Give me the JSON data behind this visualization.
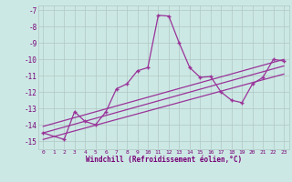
{
  "xlabel": "Windchill (Refroidissement éolien,°C)",
  "background_color": "#cce8e4",
  "grid_color": "#b0c8c4",
  "line_color": "#993399",
  "xlim": [
    -0.5,
    23.5
  ],
  "ylim": [
    -15.5,
    -6.7
  ],
  "xticks": [
    0,
    1,
    2,
    3,
    4,
    5,
    6,
    7,
    8,
    9,
    10,
    11,
    12,
    13,
    14,
    15,
    16,
    17,
    18,
    19,
    20,
    21,
    22,
    23
  ],
  "yticks": [
    -15,
    -14,
    -13,
    -12,
    -11,
    -10,
    -9,
    -8,
    -7
  ],
  "zigzag_x": [
    0,
    2,
    3,
    4,
    5,
    6,
    7,
    8,
    9,
    10,
    11,
    12,
    13,
    14,
    15,
    16,
    17,
    18,
    19,
    20,
    21,
    22,
    23
  ],
  "zigzag_y": [
    -14.5,
    -14.9,
    -13.2,
    -13.8,
    -14.0,
    -13.2,
    -11.8,
    -11.5,
    -10.7,
    -10.5,
    -7.3,
    -7.35,
    -9.0,
    -10.5,
    -11.1,
    -11.05,
    -12.0,
    -12.5,
    -12.65,
    -11.5,
    -11.1,
    -10.0,
    -10.1
  ],
  "line1_x": [
    0,
    23
  ],
  "line1_y": [
    -14.1,
    -10.0
  ],
  "line2_x": [
    0,
    23
  ],
  "line2_y": [
    -14.5,
    -10.4
  ],
  "line3_x": [
    0,
    23
  ],
  "line3_y": [
    -14.9,
    -10.9
  ]
}
